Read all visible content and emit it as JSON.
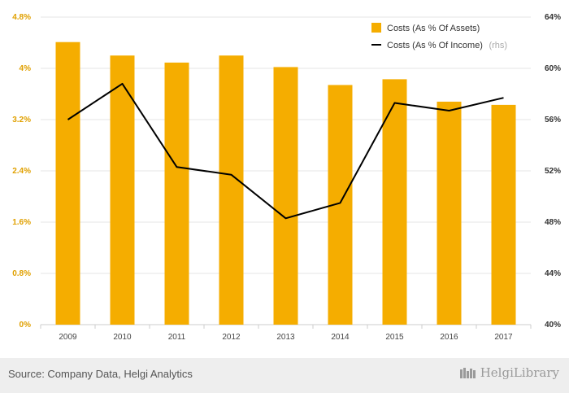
{
  "chart_data": {
    "type": "bar+line",
    "categories": [
      "2009",
      "2010",
      "2011",
      "2012",
      "2013",
      "2014",
      "2015",
      "2016",
      "2017"
    ],
    "series": [
      {
        "name": "Costs (As % Of Assets)",
        "type": "bar",
        "axis": "left",
        "values": [
          4.41,
          4.2,
          4.09,
          4.2,
          4.02,
          3.74,
          3.83,
          3.48,
          3.43
        ],
        "color": "#F5AD00"
      },
      {
        "name": "Costs (As % Of Income)",
        "name_suffix": "(rhs)",
        "type": "line",
        "axis": "right",
        "values": [
          56.0,
          58.8,
          52.3,
          51.7,
          48.3,
          49.5,
          57.3,
          56.7,
          57.7
        ],
        "color": "#000000"
      }
    ],
    "left_axis": {
      "min": 0,
      "max": 4.8,
      "ticks": [
        "0%",
        "0.8%",
        "1.6%",
        "2.4%",
        "3.2%",
        "4%",
        "4.8%"
      ]
    },
    "right_axis": {
      "min": 40,
      "max": 64,
      "ticks": [
        "40%",
        "44%",
        "48%",
        "52%",
        "56%",
        "60%",
        "64%"
      ]
    },
    "grid": true,
    "legend_position": "top-right"
  },
  "footer": {
    "source": "Source: Company Data, Helgi Analytics",
    "logo_text": "HelgiLibrary"
  },
  "colors": {
    "bar": "#F5AD00",
    "line": "#000000",
    "left_tick": "#E0A000",
    "footer_bg": "#EEEEEE"
  }
}
